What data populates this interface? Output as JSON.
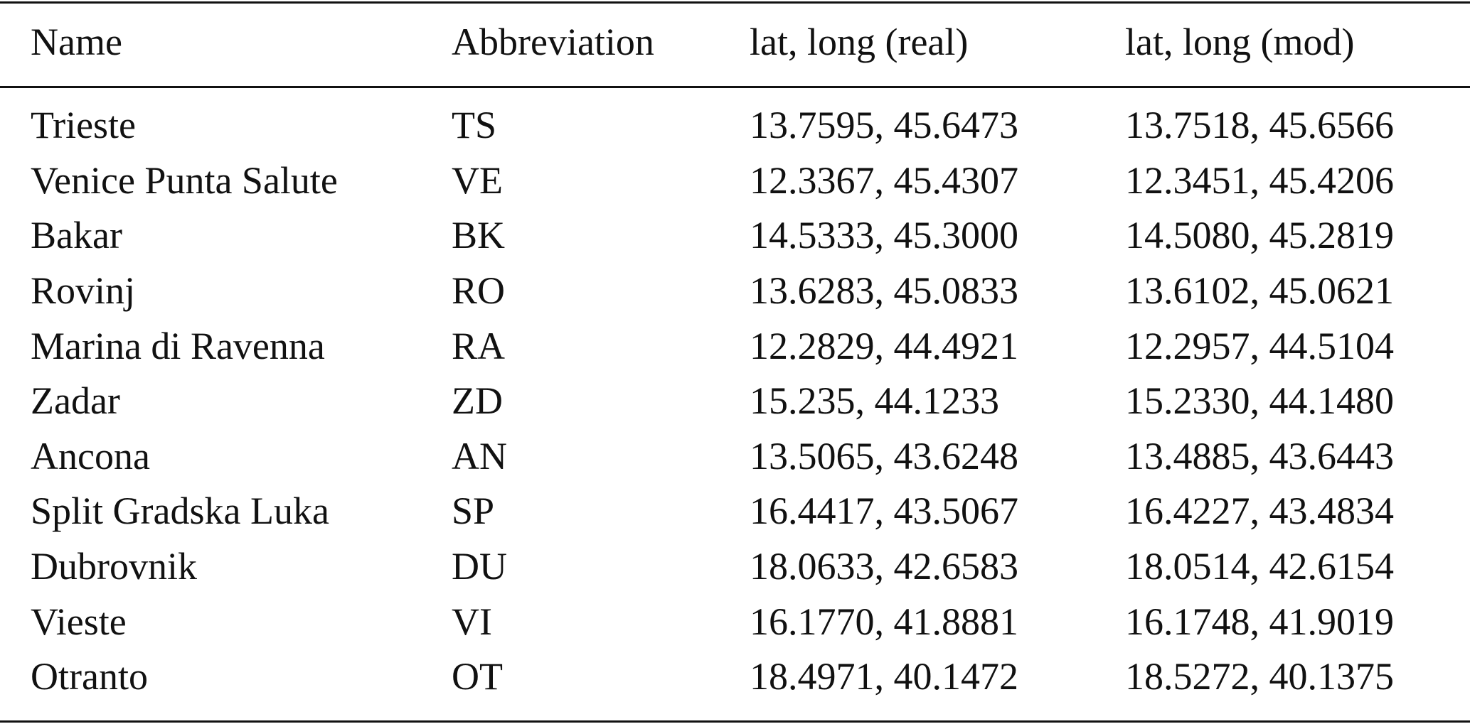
{
  "table": {
    "headers": {
      "name": "Name",
      "abbreviation": "Abbreviation",
      "real": "lat, long (real)",
      "mod": "lat, long (mod)"
    },
    "rows": [
      {
        "name": "Trieste",
        "abbreviation": "TS",
        "real": "13.7595, 45.6473",
        "mod": "13.7518, 45.6566"
      },
      {
        "name": "Venice Punta Salute",
        "abbreviation": "VE",
        "real": "12.3367, 45.4307",
        "mod": "12.3451, 45.4206"
      },
      {
        "name": "Bakar",
        "abbreviation": "BK",
        "real": "14.5333, 45.3000",
        "mod": "14.5080, 45.2819"
      },
      {
        "name": "Rovinj",
        "abbreviation": "RO",
        "real": "13.6283, 45.0833",
        "mod": "13.6102, 45.0621"
      },
      {
        "name": "Marina di Ravenna",
        "abbreviation": "RA",
        "real": "12.2829, 44.4921",
        "mod": "12.2957, 44.5104"
      },
      {
        "name": "Zadar",
        "abbreviation": "ZD",
        "real": "15.235, 44.1233",
        "mod": "15.2330, 44.1480"
      },
      {
        "name": "Ancona",
        "abbreviation": "AN",
        "real": "13.5065, 43.6248",
        "mod": "13.4885, 43.6443"
      },
      {
        "name": "Split Gradska Luka",
        "abbreviation": "SP",
        "real": "16.4417, 43.5067",
        "mod": "16.4227, 43.4834"
      },
      {
        "name": "Dubrovnik",
        "abbreviation": "DU",
        "real": "18.0633, 42.6583",
        "mod": "18.0514, 42.6154"
      },
      {
        "name": "Vieste",
        "abbreviation": "VI",
        "real": "16.1770, 41.8881",
        "mod": "16.1748, 41.9019"
      },
      {
        "name": "Otranto",
        "abbreviation": "OT",
        "real": "18.4971, 40.1472",
        "mod": "18.5272, 40.1375"
      }
    ]
  }
}
